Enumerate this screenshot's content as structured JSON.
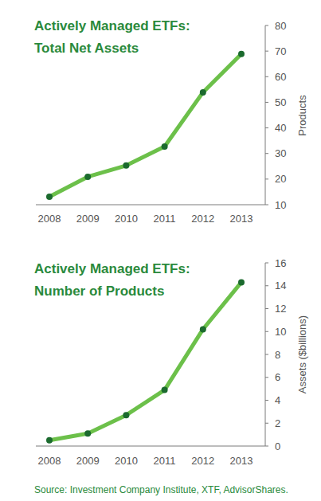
{
  "chart_data": [
    {
      "type": "line",
      "title": "Actively Managed ETFs: Total Net Assets",
      "y_label": "Products",
      "categories": [
        "2008",
        "2009",
        "2010",
        "2011",
        "2012",
        "2013"
      ],
      "values": [
        13.1,
        20.9,
        25.3,
        32.7,
        53.9,
        68.9
      ],
      "color": "#6cc04a",
      "marker": "circle",
      "ylim": [
        10,
        80
      ],
      "yticks": [
        10,
        20,
        30,
        40,
        50,
        60,
        70,
        80
      ],
      "grid": false
    },
    {
      "type": "line",
      "title": "Actively Managed ETFs: Number of Products",
      "y_label": "Assets ($billions)",
      "categories": [
        "2008",
        "2009",
        "2010",
        "2011",
        "2012",
        "2013"
      ],
      "values": [
        0.5,
        1.1,
        2.7,
        4.9,
        10.2,
        14.3
      ],
      "color": "#6cc04a",
      "marker": "circle",
      "ylim": [
        0,
        16
      ],
      "yticks": [
        0,
        2,
        4,
        6,
        8,
        10,
        12,
        14,
        16
      ],
      "grid": false
    }
  ],
  "footer": {
    "source": "Source: Investment Company Institute, XTF, AdvisorShares."
  }
}
